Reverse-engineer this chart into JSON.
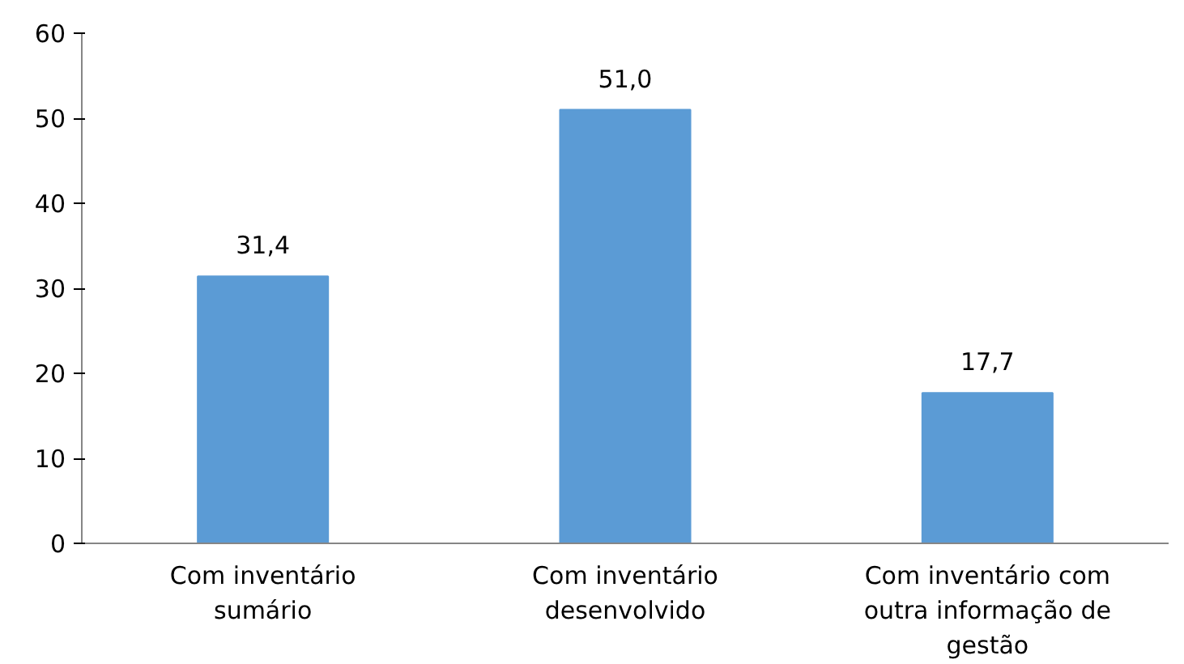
{
  "chart_data": {
    "type": "bar",
    "categories": [
      "Com inventário sumário",
      "Com inventário desenvolvido",
      "Com inventário com outra informação de gestão"
    ],
    "values": [
      31.4,
      51.0,
      17.7
    ],
    "color": "#5b9bd5",
    "value_labels": [
      "31,4",
      "51,0",
      "17,7"
    ],
    "ylim": [
      0,
      60
    ],
    "yticks": [
      0,
      10,
      20,
      30,
      40,
      50,
      60
    ],
    "grid": false
  }
}
